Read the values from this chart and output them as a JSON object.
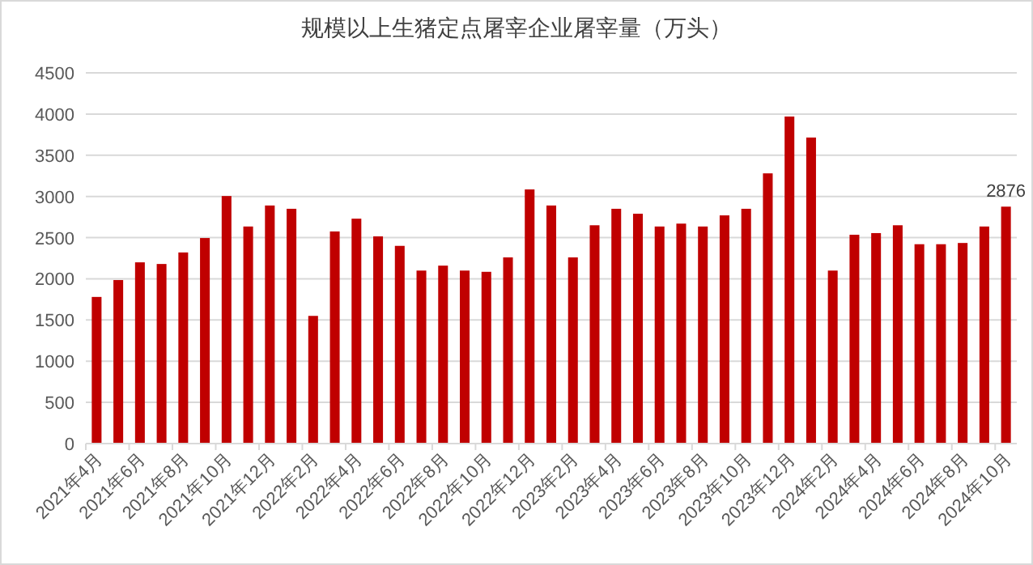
{
  "chart_data": {
    "type": "bar",
    "title": "规模以上生猪定点屠宰企业屠宰量（万头）",
    "categories": [
      "2021年4月",
      null,
      "2021年6月",
      null,
      "2021年8月",
      null,
      "2021年10月",
      null,
      "2021年12月",
      null,
      "2022年2月",
      null,
      "2022年4月",
      null,
      "2022年6月",
      null,
      "2022年8月",
      null,
      "2022年10月",
      null,
      "2022年12月",
      null,
      "2023年2月",
      null,
      "2023年4月",
      null,
      "2023年6月",
      null,
      "2023年8月",
      null,
      "2023年10月",
      null,
      "2023年12月",
      null,
      "2024年2月",
      null,
      "2024年4月",
      null,
      "2024年6月",
      null,
      "2024年8月",
      null,
      "2024年10月"
    ],
    "values": [
      1780,
      1985,
      2200,
      2180,
      2320,
      2495,
      3005,
      2635,
      2890,
      2850,
      1550,
      2575,
      2730,
      2515,
      2400,
      2100,
      2160,
      2100,
      2085,
      2260,
      3085,
      2890,
      2260,
      2650,
      2850,
      2790,
      2635,
      2670,
      2635,
      2770,
      2850,
      3280,
      3970,
      3715,
      2100,
      2535,
      2555,
      2650,
      2420,
      2420,
      2435,
      2635,
      2876
    ],
    "value_labels": [
      null,
      null,
      null,
      null,
      null,
      null,
      null,
      null,
      null,
      null,
      null,
      null,
      null,
      null,
      null,
      null,
      null,
      null,
      null,
      null,
      null,
      null,
      null,
      null,
      null,
      null,
      null,
      null,
      null,
      null,
      null,
      null,
      null,
      null,
      null,
      null,
      null,
      null,
      null,
      null,
      null,
      null,
      "2876"
    ],
    "color": "#c00000",
    "ylim": [
      0,
      4500
    ],
    "yticks": [
      0,
      500,
      1000,
      1500,
      2000,
      2500,
      3000,
      3500,
      4000,
      4500
    ],
    "grid": "y"
  }
}
